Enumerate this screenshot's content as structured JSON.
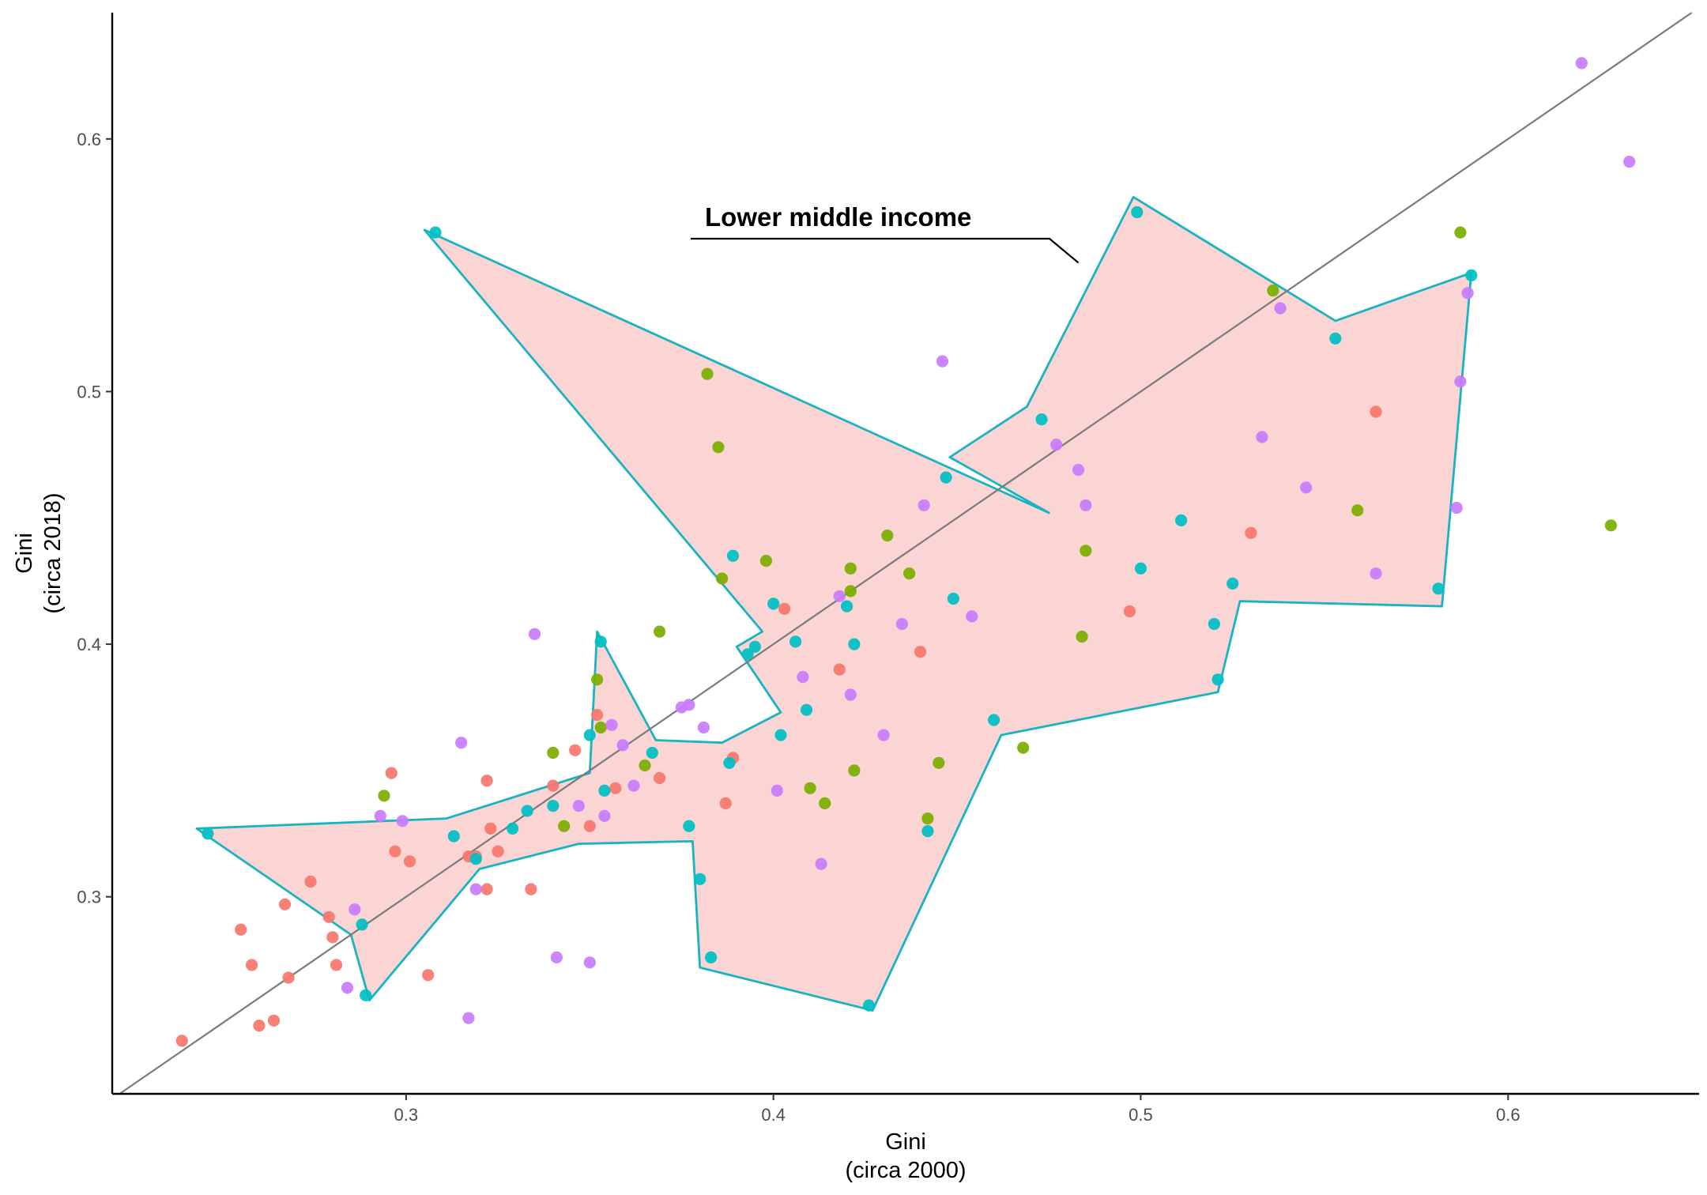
{
  "chart_data": {
    "type": "scatter",
    "xlabel": [
      "Gini",
      "(circa 2000)"
    ],
    "ylabel": [
      "Gini",
      "(circa 2018)"
    ],
    "xlim": [
      0.22,
      0.652
    ],
    "ylim": [
      0.222,
      0.65
    ],
    "x_ticks": [
      0.3,
      0.4,
      0.5,
      0.6
    ],
    "x_tick_labels": [
      "0.3",
      "0.4",
      "0.5",
      "0.6"
    ],
    "y_ticks": [
      0.3,
      0.4,
      0.5,
      0.6
    ],
    "y_tick_labels": [
      "0.3",
      "0.4",
      "0.5",
      "0.6"
    ],
    "grid": false,
    "legend": "none",
    "reference_line": {
      "type": "identity",
      "color": "#7a7a7a"
    },
    "annotation": {
      "text": "Lower middle income",
      "points_to": [
        0.483,
        0.551
      ]
    },
    "highlight_hull": {
      "label": "Lower middle income",
      "fill": "#fbd5d3",
      "stroke": "#19b3c2",
      "polygon": [
        [
          0.305,
          0.564
        ],
        [
          0.475,
          0.452
        ],
        [
          0.448,
          0.474
        ],
        [
          0.469,
          0.494
        ],
        [
          0.498,
          0.577
        ],
        [
          0.553,
          0.528
        ],
        [
          0.59,
          0.547
        ],
        [
          0.582,
          0.415
        ],
        [
          0.527,
          0.417
        ],
        [
          0.521,
          0.381
        ],
        [
          0.462,
          0.364
        ],
        [
          0.427,
          0.255
        ],
        [
          0.38,
          0.272
        ],
        [
          0.378,
          0.322
        ],
        [
          0.347,
          0.321
        ],
        [
          0.32,
          0.311
        ],
        [
          0.29,
          0.259
        ],
        [
          0.285,
          0.285
        ],
        [
          0.243,
          0.327
        ],
        [
          0.311,
          0.331
        ],
        [
          0.35,
          0.349
        ],
        [
          0.352,
          0.405
        ],
        [
          0.368,
          0.362
        ],
        [
          0.386,
          0.361
        ],
        [
          0.402,
          0.373
        ],
        [
          0.39,
          0.399
        ],
        [
          0.397,
          0.405
        ]
      ]
    },
    "series": [
      {
        "color": "#f8766d",
        "points": [
          [
            0.239,
            0.243
          ],
          [
            0.255,
            0.287
          ],
          [
            0.258,
            0.273
          ],
          [
            0.26,
            0.249
          ],
          [
            0.264,
            0.251
          ],
          [
            0.267,
            0.297
          ],
          [
            0.268,
            0.268
          ],
          [
            0.274,
            0.306
          ],
          [
            0.279,
            0.292
          ],
          [
            0.28,
            0.284
          ],
          [
            0.281,
            0.273
          ],
          [
            0.296,
            0.349
          ],
          [
            0.297,
            0.318
          ],
          [
            0.301,
            0.314
          ],
          [
            0.306,
            0.269
          ],
          [
            0.317,
            0.316
          ],
          [
            0.319,
            0.316
          ],
          [
            0.322,
            0.303
          ],
          [
            0.322,
            0.346
          ],
          [
            0.323,
            0.327
          ],
          [
            0.325,
            0.318
          ],
          [
            0.334,
            0.303
          ],
          [
            0.34,
            0.344
          ],
          [
            0.346,
            0.358
          ],
          [
            0.35,
            0.328
          ],
          [
            0.352,
            0.372
          ],
          [
            0.357,
            0.343
          ],
          [
            0.369,
            0.347
          ],
          [
            0.387,
            0.337
          ],
          [
            0.389,
            0.355
          ],
          [
            0.403,
            0.414
          ],
          [
            0.418,
            0.39
          ],
          [
            0.44,
            0.397
          ],
          [
            0.497,
            0.413
          ],
          [
            0.53,
            0.444
          ],
          [
            0.564,
            0.492
          ]
        ]
      },
      {
        "color": "#7cae00",
        "points": [
          [
            0.294,
            0.34
          ],
          [
            0.34,
            0.357
          ],
          [
            0.343,
            0.328
          ],
          [
            0.352,
            0.386
          ],
          [
            0.353,
            0.367
          ],
          [
            0.365,
            0.352
          ],
          [
            0.369,
            0.405
          ],
          [
            0.382,
            0.507
          ],
          [
            0.385,
            0.478
          ],
          [
            0.386,
            0.426
          ],
          [
            0.398,
            0.433
          ],
          [
            0.41,
            0.343
          ],
          [
            0.414,
            0.337
          ],
          [
            0.421,
            0.43
          ],
          [
            0.421,
            0.421
          ],
          [
            0.422,
            0.35
          ],
          [
            0.431,
            0.443
          ],
          [
            0.437,
            0.428
          ],
          [
            0.442,
            0.331
          ],
          [
            0.445,
            0.353
          ],
          [
            0.468,
            0.359
          ],
          [
            0.484,
            0.403
          ],
          [
            0.485,
            0.437
          ],
          [
            0.536,
            0.54
          ],
          [
            0.559,
            0.453
          ],
          [
            0.587,
            0.563
          ],
          [
            0.628,
            0.447
          ]
        ]
      },
      {
        "color": "#00bfc4",
        "points": [
          [
            0.246,
            0.325
          ],
          [
            0.288,
            0.289
          ],
          [
            0.289,
            0.261
          ],
          [
            0.308,
            0.563
          ],
          [
            0.313,
            0.324
          ],
          [
            0.319,
            0.315
          ],
          [
            0.329,
            0.327
          ],
          [
            0.333,
            0.334
          ],
          [
            0.34,
            0.336
          ],
          [
            0.35,
            0.364
          ],
          [
            0.353,
            0.401
          ],
          [
            0.354,
            0.342
          ],
          [
            0.367,
            0.357
          ],
          [
            0.377,
            0.328
          ],
          [
            0.38,
            0.307
          ],
          [
            0.383,
            0.276
          ],
          [
            0.388,
            0.353
          ],
          [
            0.389,
            0.435
          ],
          [
            0.393,
            0.396
          ],
          [
            0.395,
            0.399
          ],
          [
            0.4,
            0.416
          ],
          [
            0.402,
            0.364
          ],
          [
            0.406,
            0.401
          ],
          [
            0.409,
            0.374
          ],
          [
            0.42,
            0.415
          ],
          [
            0.422,
            0.4
          ],
          [
            0.426,
            0.257
          ],
          [
            0.442,
            0.326
          ],
          [
            0.447,
            0.466
          ],
          [
            0.449,
            0.418
          ],
          [
            0.46,
            0.37
          ],
          [
            0.473,
            0.489
          ],
          [
            0.499,
            0.571
          ],
          [
            0.5,
            0.43
          ],
          [
            0.511,
            0.449
          ],
          [
            0.52,
            0.408
          ],
          [
            0.521,
            0.386
          ],
          [
            0.525,
            0.424
          ],
          [
            0.553,
            0.521
          ],
          [
            0.581,
            0.422
          ],
          [
            0.59,
            0.546
          ]
        ]
      },
      {
        "color": "#c77cff",
        "points": [
          [
            0.284,
            0.264
          ],
          [
            0.286,
            0.295
          ],
          [
            0.293,
            0.332
          ],
          [
            0.299,
            0.33
          ],
          [
            0.315,
            0.361
          ],
          [
            0.317,
            0.252
          ],
          [
            0.319,
            0.303
          ],
          [
            0.335,
            0.404
          ],
          [
            0.341,
            0.276
          ],
          [
            0.347,
            0.336
          ],
          [
            0.35,
            0.274
          ],
          [
            0.354,
            0.332
          ],
          [
            0.356,
            0.368
          ],
          [
            0.359,
            0.36
          ],
          [
            0.362,
            0.344
          ],
          [
            0.375,
            0.375
          ],
          [
            0.377,
            0.376
          ],
          [
            0.381,
            0.367
          ],
          [
            0.401,
            0.342
          ],
          [
            0.408,
            0.387
          ],
          [
            0.413,
            0.313
          ],
          [
            0.418,
            0.419
          ],
          [
            0.421,
            0.38
          ],
          [
            0.43,
            0.364
          ],
          [
            0.435,
            0.408
          ],
          [
            0.441,
            0.455
          ],
          [
            0.446,
            0.512
          ],
          [
            0.454,
            0.411
          ],
          [
            0.477,
            0.479
          ],
          [
            0.483,
            0.469
          ],
          [
            0.485,
            0.455
          ],
          [
            0.533,
            0.482
          ],
          [
            0.538,
            0.533
          ],
          [
            0.545,
            0.462
          ],
          [
            0.564,
            0.428
          ],
          [
            0.586,
            0.454
          ],
          [
            0.587,
            0.504
          ],
          [
            0.589,
            0.539
          ],
          [
            0.62,
            0.63
          ],
          [
            0.633,
            0.591
          ]
        ]
      }
    ]
  }
}
